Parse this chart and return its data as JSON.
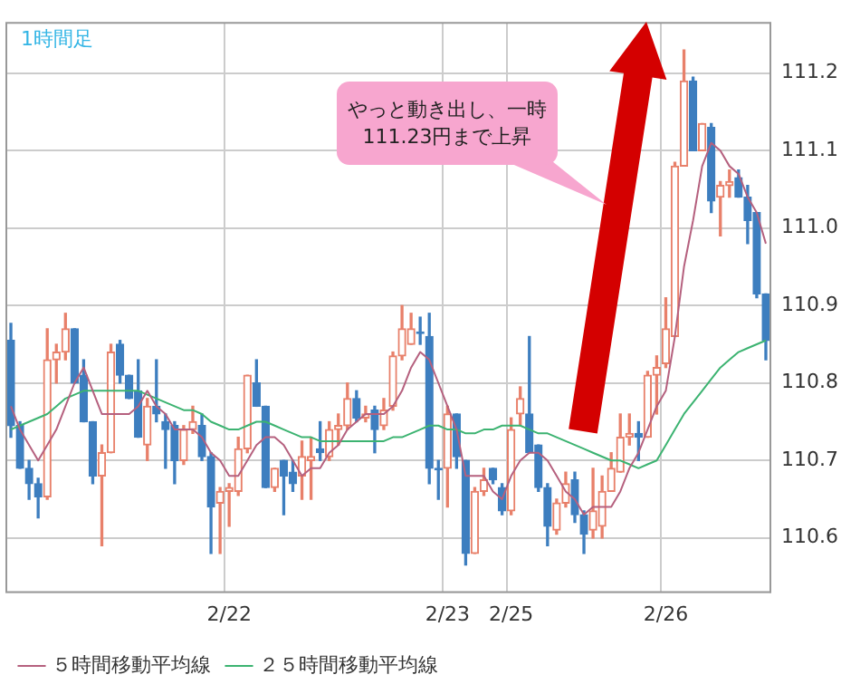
{
  "chart_data": {
    "type": "candlestick",
    "title": "1時間足",
    "annotations": [
      "やっと動き出し、一時111.23円まで上昇"
    ],
    "categories": [
      null,
      null,
      null,
      null,
      null,
      null,
      null,
      null,
      null,
      null,
      null,
      null,
      null,
      null,
      null,
      null,
      null,
      null,
      null,
      null,
      null,
      null,
      null,
      null,
      "2/22",
      null,
      null,
      null,
      null,
      null,
      null,
      null,
      null,
      null,
      null,
      null,
      null,
      null,
      null,
      null,
      null,
      null,
      null,
      null,
      null,
      null,
      null,
      null,
      "2/23",
      null,
      null,
      null,
      null,
      null,
      null,
      "2/25",
      null,
      null,
      null,
      null,
      null,
      null,
      null,
      null,
      null,
      null,
      null,
      null,
      null,
      null,
      null,
      null,
      "2/26",
      null,
      null,
      null,
      null,
      null,
      null,
      null,
      null,
      null,
      null,
      null
    ],
    "ohlc": [
      [
        110.855,
        110.877,
        110.73,
        110.745
      ],
      [
        110.745,
        110.75,
        110.69,
        110.69
      ],
      [
        110.69,
        110.7,
        110.65,
        110.67
      ],
      [
        110.67,
        110.677,
        110.626,
        110.653
      ],
      [
        110.653,
        110.87,
        110.65,
        110.83
      ],
      [
        110.83,
        110.85,
        110.8,
        110.84
      ],
      [
        110.84,
        110.89,
        110.83,
        110.87
      ],
      [
        110.87,
        110.87,
        110.8,
        110.8
      ],
      [
        110.81,
        110.83,
        110.75,
        110.75
      ],
      [
        110.75,
        110.75,
        110.67,
        110.68
      ],
      [
        110.68,
        110.72,
        110.59,
        110.71
      ],
      [
        110.71,
        110.85,
        110.71,
        110.84
      ],
      [
        110.85,
        110.855,
        110.8,
        110.81
      ],
      [
        110.81,
        110.81,
        110.78,
        110.78
      ],
      [
        110.79,
        110.83,
        110.73,
        110.73
      ],
      [
        110.72,
        110.78,
        110.7,
        110.77
      ],
      [
        110.77,
        110.83,
        110.75,
        110.76
      ],
      [
        110.75,
        110.76,
        110.69,
        110.74
      ],
      [
        110.745,
        110.75,
        110.67,
        110.7
      ],
      [
        110.7,
        110.745,
        110.695,
        110.74
      ],
      [
        110.74,
        110.77,
        110.735,
        110.75
      ],
      [
        110.745,
        110.76,
        110.7,
        110.705
      ],
      [
        110.705,
        110.71,
        110.58,
        110.64
      ],
      [
        110.645,
        110.665,
        110.58,
        110.66
      ],
      [
        110.66,
        110.67,
        110.615,
        110.665
      ],
      [
        110.66,
        110.73,
        110.655,
        110.715
      ],
      [
        110.715,
        110.81,
        110.71,
        110.81
      ],
      [
        110.8,
        110.83,
        110.77,
        110.77
      ],
      [
        110.77,
        110.77,
        110.665,
        110.665
      ],
      [
        110.665,
        110.69,
        110.66,
        110.69
      ],
      [
        110.7,
        110.7,
        110.63,
        110.68
      ],
      [
        110.685,
        110.7,
        110.66,
        110.67
      ],
      [
        110.68,
        110.725,
        110.65,
        110.705
      ],
      [
        110.7,
        110.73,
        110.65,
        110.705
      ],
      [
        110.715,
        110.75,
        110.7,
        110.71
      ],
      [
        110.705,
        110.75,
        110.7,
        110.74
      ],
      [
        110.74,
        110.76,
        110.72,
        110.745
      ],
      [
        110.745,
        110.8,
        110.74,
        110.78
      ],
      [
        110.78,
        110.79,
        110.75,
        110.755
      ],
      [
        110.755,
        110.77,
        110.75,
        110.76
      ],
      [
        110.765,
        110.77,
        110.71,
        110.74
      ],
      [
        110.745,
        110.78,
        110.74,
        110.765
      ],
      [
        110.77,
        110.84,
        110.765,
        110.835
      ],
      [
        110.835,
        110.9,
        110.83,
        110.87
      ],
      [
        110.85,
        110.89,
        110.85,
        110.87
      ],
      [
        110.866,
        110.885,
        110.85,
        110.864
      ],
      [
        110.86,
        110.89,
        110.67,
        110.69
      ],
      [
        110.69,
        110.7,
        110.65,
        110.688
      ],
      [
        110.69,
        110.77,
        110.64,
        110.76
      ],
      [
        110.76,
        110.76,
        110.69,
        110.705
      ],
      [
        110.7,
        110.7,
        110.565,
        110.58
      ],
      [
        110.58,
        110.665,
        110.58,
        110.66
      ],
      [
        110.66,
        110.69,
        110.655,
        110.675
      ],
      [
        110.69,
        110.69,
        110.67,
        110.675
      ],
      [
        110.665,
        110.67,
        110.63,
        110.635
      ],
      [
        110.635,
        110.755,
        110.63,
        110.74
      ],
      [
        110.76,
        110.795,
        110.745,
        110.78
      ],
      [
        110.76,
        110.86,
        110.71,
        110.71
      ],
      [
        110.72,
        110.72,
        110.66,
        110.665
      ],
      [
        110.665,
        110.67,
        110.59,
        110.615
      ],
      [
        110.61,
        110.65,
        110.605,
        110.645
      ],
      [
        110.645,
        110.685,
        110.64,
        110.67
      ],
      [
        110.675,
        110.685,
        110.62,
        110.63
      ],
      [
        110.63,
        110.635,
        110.58,
        110.605
      ],
      [
        110.61,
        110.69,
        110.6,
        110.635
      ],
      [
        110.615,
        110.68,
        110.6,
        110.66
      ],
      [
        110.66,
        110.71,
        110.66,
        110.69
      ],
      [
        110.685,
        110.76,
        110.685,
        110.73
      ],
      [
        110.73,
        110.76,
        110.72,
        110.735
      ],
      [
        110.735,
        110.75,
        110.7,
        110.73
      ],
      [
        110.73,
        110.815,
        110.73,
        110.81
      ],
      [
        110.81,
        110.835,
        110.76,
        110.82
      ],
      [
        110.825,
        110.91,
        110.82,
        110.87
      ],
      [
        110.86,
        111.085,
        110.86,
        111.08
      ],
      [
        111.08,
        111.23,
        111.08,
        111.19
      ],
      [
        111.19,
        111.195,
        111.1,
        111.1
      ],
      [
        111.1,
        111.135,
        111.1,
        111.135
      ],
      [
        111.13,
        111.135,
        111.02,
        111.035
      ],
      [
        111.04,
        111.06,
        110.99,
        111.055
      ],
      [
        111.055,
        111.075,
        111.04,
        111.06
      ],
      [
        111.065,
        111.075,
        111.04,
        111.04
      ],
      [
        111.04,
        111.055,
        110.98,
        111.01
      ],
      [
        111.02,
        111.02,
        110.91,
        110.915
      ],
      [
        110.915,
        110.915,
        110.83,
        110.855
      ]
    ],
    "colors": [
      "#3d7ebf",
      "#3d7ebf",
      "#3d7ebf",
      "#3d7ebf",
      "#e8806a",
      "#e8806a",
      "#e8806a",
      "#3d7ebf",
      "#3d7ebf",
      "#3d7ebf",
      "#e8806a",
      "#e8806a",
      "#3d7ebf",
      "#3d7ebf",
      "#3d7ebf",
      "#e8806a",
      "#3d7ebf",
      "#3d7ebf",
      "#3d7ebf",
      "#e8806a",
      "#e8806a",
      "#3d7ebf",
      "#3d7ebf",
      "#e8806a",
      "#e8806a",
      "#e8806a",
      "#e8806a",
      "#3d7ebf",
      "#3d7ebf",
      "#e8806a",
      "#3d7ebf",
      "#3d7ebf",
      "#e8806a",
      "#e8806a",
      "#3d7ebf",
      "#e8806a",
      "#e8806a",
      "#e8806a",
      "#3d7ebf",
      "#e8806a",
      "#3d7ebf",
      "#e8806a",
      "#e8806a",
      "#e8806a",
      "#e8806a",
      "#3d7ebf",
      "#3d7ebf",
      "#3d7ebf",
      "#e8806a",
      "#3d7ebf",
      "#3d7ebf",
      "#e8806a",
      "#e8806a",
      "#3d7ebf",
      "#3d7ebf",
      "#e8806a",
      "#e8806a",
      "#3d7ebf",
      "#3d7ebf",
      "#3d7ebf",
      "#e8806a",
      "#e8806a",
      "#3d7ebf",
      "#3d7ebf",
      "#e8806a",
      "#e8806a",
      "#e8806a",
      "#e8806a",
      "#e8806a",
      "#3d7ebf",
      "#e8806a",
      "#e8806a",
      "#e8806a",
      "#e8806a",
      "#e8806a",
      "#3d7ebf",
      "#e8806a",
      "#3d7ebf",
      "#e8806a",
      "#e8806a",
      "#3d7ebf",
      "#3d7ebf",
      "#3d7ebf",
      "#3d7ebf"
    ],
    "series": [
      {
        "type": "line",
        "name": "５時間移動平均線",
        "color": "#b5607e",
        "values": [
          110.77,
          110.74,
          110.72,
          110.7,
          110.72,
          110.74,
          110.77,
          110.8,
          110.82,
          110.79,
          110.76,
          110.76,
          110.76,
          110.76,
          110.77,
          110.79,
          110.77,
          110.76,
          110.74,
          110.74,
          110.74,
          110.73,
          110.71,
          110.7,
          110.68,
          110.68,
          110.7,
          110.72,
          110.73,
          110.73,
          110.72,
          110.7,
          110.68,
          110.69,
          110.69,
          110.71,
          110.72,
          110.74,
          110.75,
          110.76,
          110.76,
          110.76,
          110.77,
          110.79,
          110.82,
          110.84,
          110.83,
          110.8,
          110.77,
          110.74,
          110.68,
          110.68,
          110.68,
          110.66,
          110.65,
          110.68,
          110.7,
          110.71,
          110.71,
          110.7,
          110.68,
          110.66,
          110.65,
          110.63,
          110.64,
          110.64,
          110.64,
          110.66,
          110.69,
          110.71,
          110.74,
          110.77,
          110.79,
          110.86,
          110.95,
          111.01,
          111.08,
          111.11,
          111.1,
          111.08,
          111.07,
          111.04,
          111.02,
          110.98
        ]
      },
      {
        "type": "line",
        "name": "２５時間移動平均線",
        "color": "#3cb371",
        "values": [
          110.74,
          110.745,
          110.75,
          110.755,
          110.76,
          110.77,
          110.78,
          110.785,
          110.79,
          110.79,
          110.79,
          110.79,
          110.79,
          110.79,
          110.79,
          110.785,
          110.78,
          110.775,
          110.77,
          110.765,
          110.765,
          110.76,
          110.75,
          110.745,
          110.74,
          110.74,
          110.745,
          110.75,
          110.75,
          110.745,
          110.74,
          110.735,
          110.73,
          110.73,
          110.725,
          110.725,
          110.725,
          110.725,
          110.725,
          110.725,
          110.725,
          110.725,
          110.73,
          110.73,
          110.735,
          110.74,
          110.745,
          110.745,
          110.74,
          110.74,
          110.735,
          110.735,
          110.74,
          110.74,
          110.745,
          110.745,
          110.745,
          110.74,
          110.735,
          110.735,
          110.73,
          110.725,
          110.72,
          110.715,
          110.71,
          110.705,
          110.7,
          110.7,
          110.695,
          110.69,
          110.695,
          110.7,
          110.72,
          110.74,
          110.76,
          110.775,
          110.79,
          110.805,
          110.82,
          110.83,
          110.84,
          110.845,
          110.85,
          110.855
        ]
      }
    ],
    "ylim": [
      110.53,
      111.265
    ],
    "yticks": [
      110.6,
      110.7,
      110.8,
      110.9,
      {
        "value": 111,
        "label": "111.0"
      },
      111.1,
      111.2
    ],
    "grid": true,
    "legend": "bottom",
    "marker": "none"
  }
}
